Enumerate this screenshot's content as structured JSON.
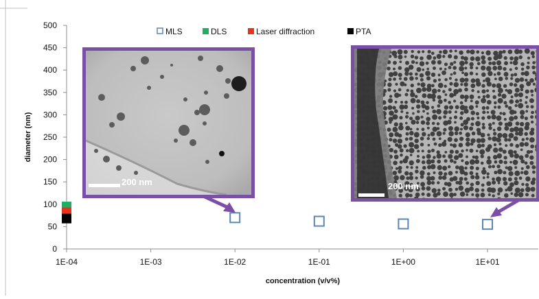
{
  "chart_data": {
    "type": "scatter",
    "xscale": "log",
    "xlabel": "concentration (v/v%)",
    "ylabel": "diameter (nm)",
    "xlim": [
      0.0001,
      100
    ],
    "ylim": [
      0,
      500
    ],
    "x_tick_values": [
      0.0001,
      0.001,
      0.01,
      0.1,
      1,
      10
    ],
    "x_tick_labels": [
      "1E-04",
      "1E-03",
      "1E-02",
      "1E-01",
      "1E+00",
      "1E+01"
    ],
    "y_ticks": [
      0,
      50,
      100,
      150,
      200,
      250,
      300,
      350,
      400,
      450,
      500
    ],
    "grid": false,
    "legend_position": "top",
    "series": [
      {
        "name": "MLS",
        "color": "#5b86b1",
        "marker": "square-open",
        "x": [
          0.01,
          0.1,
          1,
          10
        ],
        "y": [
          70,
          62,
          56,
          55
        ]
      },
      {
        "name": "DLS",
        "color": "#1fae62",
        "marker": "square",
        "x": [
          0.0001
        ],
        "y": [
          95
        ]
      },
      {
        "name": "Laser diffraction",
        "color": "#e8321e",
        "marker": "square",
        "x": [
          0.0001
        ],
        "y": [
          82
        ]
      },
      {
        "name": "PTA",
        "color": "#000000",
        "marker": "square",
        "x": [
          0.0001
        ],
        "y": [
          68
        ]
      }
    ],
    "insets": [
      {
        "scale_label": "200 nm",
        "border_color": "#7b4fa6",
        "image": "TEM micrograph, sparse particles",
        "arrow_to_x": 0.01,
        "arrow_to_y": 70
      },
      {
        "scale_label": "200 nm",
        "border_color": "#7b4fa6",
        "image": "TEM micrograph, dense particles",
        "arrow_to_x": 10,
        "arrow_to_y": 55
      }
    ]
  }
}
